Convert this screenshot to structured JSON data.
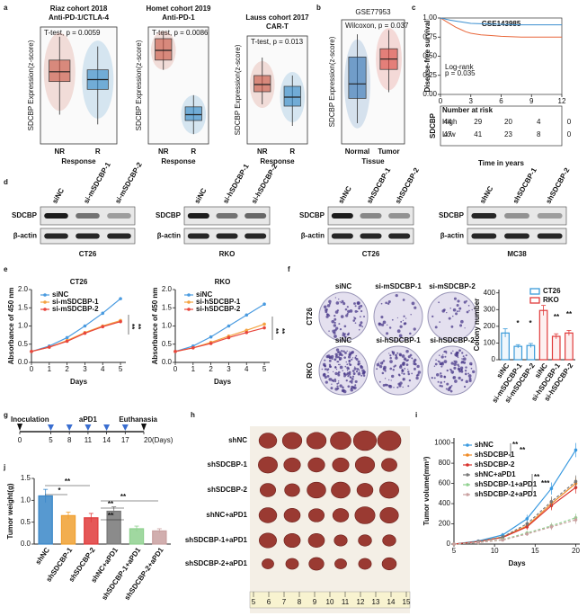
{
  "panel_labels": [
    "a",
    "b",
    "c",
    "d",
    "e",
    "f",
    "g",
    "h",
    "i",
    "j"
  ],
  "a": {
    "charts": [
      {
        "type": "box",
        "title": "Riaz cohort 2018",
        "subtitle": "Anti-PD-1/CTLA-4",
        "stat": "T-test, p = 0.0059",
        "ylabel": "SDCBP Expression(z-score)",
        "xlabel": "Response",
        "categories": [
          "NR",
          "R"
        ],
        "colors": [
          "#c8513f",
          "#2f86c4"
        ],
        "ylim": [
          -3,
          3
        ],
        "boxes": [
          {
            "min": -1.5,
            "q1": 0.2,
            "median": 0.7,
            "q3": 1.3,
            "max": 2.5
          },
          {
            "min": -2,
            "q1": -0.2,
            "median": 0.3,
            "q3": 0.8,
            "max": 2
          }
        ]
      },
      {
        "type": "box",
        "title": "Homet cohort 2019",
        "subtitle": "Anti-PD-1",
        "stat": "T-test, p = 0.0086",
        "ylabel": "SDCBP Expression(z-score)",
        "xlabel": "Response",
        "categories": [
          "NR",
          "R"
        ],
        "colors": [
          "#c8513f",
          "#2f86c4"
        ],
        "ylim": [
          -3,
          3
        ],
        "boxes": [
          {
            "min": 0.8,
            "q1": 1.3,
            "median": 1.8,
            "q3": 2.4,
            "max": 2.8
          },
          {
            "min": -2.5,
            "q1": -1.8,
            "median": -1.5,
            "q3": -1.1,
            "max": -0.5
          }
        ]
      },
      {
        "type": "box",
        "title": "Lauss cohort 2017",
        "subtitle": "CAR-T",
        "stat": "T-test, p = 0.013",
        "ylabel": "SDCBP Expression(z-score)",
        "xlabel": "Response",
        "categories": [
          "NR",
          "R"
        ],
        "colors": [
          "#c8513f",
          "#2f86c4"
        ],
        "ylim": [
          -3,
          3
        ],
        "boxes": [
          {
            "min": -0.8,
            "q1": -0.1,
            "median": 0.3,
            "q3": 0.8,
            "max": 1.8
          },
          {
            "min": -2,
            "q1": -0.9,
            "median": -0.4,
            "q3": 0.2,
            "max": 0.8
          }
        ]
      }
    ]
  },
  "b": {
    "type": "box",
    "title": "GSE77953",
    "stat": "Wilcoxon, p = 0.037",
    "ylabel": "SDCBP Expression(z-score)",
    "xlabel": "Tissue",
    "categories": [
      "Normal",
      "Tumor"
    ],
    "colors": [
      "#2f6fb0",
      "#d8423a"
    ],
    "ylim": [
      -3,
      3
    ],
    "boxes": [
      {
        "min": -2,
        "q1": -0.8,
        "median": -0.1,
        "q3": 1.2,
        "max": 2.3
      },
      {
        "min": -0.5,
        "q1": 0.6,
        "median": 1.1,
        "q3": 1.6,
        "max": 2.5
      }
    ]
  },
  "c": {
    "type": "line",
    "title": "GSE143985",
    "ylabel": "Disease-free survival",
    "xlabel": "Time in years",
    "stat": "Log-rank",
    "pvalue": "p = 0.035",
    "xlim": [
      0,
      12
    ],
    "xticks": [
      0,
      3,
      6,
      9,
      12
    ],
    "ylim": [
      0,
      1
    ],
    "yticks": [
      {
        "value": 0,
        "label": "0.00"
      },
      0.25,
      {
        "value": 0.5,
        "label": "0.50"
      },
      0.75,
      {
        "value": 1,
        "label": "1.00"
      }
    ],
    "risk_title": "Number at risk",
    "group_label": "SDCBP",
    "series": [
      {
        "name": "High",
        "color": "#e9673a",
        "x": [
          0,
          0.5,
          1,
          1.5,
          2,
          2.5,
          3,
          4,
          5,
          6,
          8,
          12
        ],
        "values": [
          1,
          0.96,
          0.92,
          0.88,
          0.85,
          0.82,
          0.8,
          0.78,
          0.77,
          0.76,
          0.75,
          0.75
        ],
        "at_risk": [
          44,
          29,
          20,
          4,
          0
        ]
      },
      {
        "name": "Low",
        "color": "#3b8fd0",
        "x": [
          0,
          1,
          2,
          3,
          5,
          8,
          12
        ],
        "values": [
          1,
          0.97,
          0.95,
          0.93,
          0.92,
          0.91,
          0.91
        ],
        "at_risk": [
          47,
          41,
          23,
          8,
          0
        ]
      }
    ]
  },
  "d": {
    "blots": [
      {
        "lanes": [
          "siNC",
          "si-mSDCBP-1",
          "si-mSDCBP-2"
        ],
        "rows": [
          "SDCBP",
          "β-actin"
        ],
        "cell_line": "CT26"
      },
      {
        "lanes": [
          "siNC",
          "si-hSDCBP-1",
          "si-hSDCBP-2"
        ],
        "rows": [
          "SDCBP",
          "β-actin"
        ],
        "cell_line": "RKO"
      },
      {
        "lanes": [
          "shNC",
          "shSDCBP-1",
          "shSDCBP-2"
        ],
        "rows": [
          "SDCBP",
          "β-actin"
        ],
        "cell_line": "CT26"
      },
      {
        "lanes": [
          "shNC",
          "shSDCBP-1",
          "shSDCBP-2"
        ],
        "rows": [
          "SDCBP",
          "β-actin"
        ],
        "cell_line": "MC38"
      }
    ]
  },
  "e": {
    "charts": [
      {
        "type": "line",
        "title": "CT26",
        "ylabel": "Absorbance of 450 nm",
        "xlabel": "Days",
        "x": [
          0,
          1,
          2,
          3,
          4,
          5
        ],
        "xlim": [
          0,
          5.3
        ],
        "xticks": [
          0,
          1,
          2,
          3,
          4,
          5
        ],
        "ylim": [
          0,
          2
        ],
        "yticks": [
          {
            "value": 0,
            "label": "0.0"
          },
          0.5,
          {
            "value": 1,
            "label": "1.0"
          },
          1.5,
          {
            "value": 2,
            "label": "2.0"
          }
        ],
        "annotations": [
          "**",
          "**"
        ],
        "series": [
          {
            "name": "siNC",
            "color": "#4a9be0",
            "values": [
              0.3,
              0.45,
              0.68,
              1.0,
              1.35,
              1.75
            ]
          },
          {
            "name": "si-mSDCBP-1",
            "color": "#f4a340",
            "values": [
              0.3,
              0.42,
              0.6,
              0.82,
              1.0,
              1.15
            ]
          },
          {
            "name": "si-mSDCBP-2",
            "color": "#e8453c",
            "values": [
              0.3,
              0.42,
              0.58,
              0.8,
              0.98,
              1.12
            ]
          }
        ]
      },
      {
        "type": "line",
        "title": "RKO",
        "ylabel": "Absorbance of 450 nm",
        "xlabel": "Days",
        "x": [
          0,
          1,
          2,
          3,
          4,
          5
        ],
        "xlim": [
          0,
          5.3
        ],
        "xticks": [
          0,
          1,
          2,
          3,
          4,
          5
        ],
        "ylim": [
          0,
          2
        ],
        "yticks": [
          {
            "value": 0,
            "label": "0.0"
          },
          0.5,
          {
            "value": 1,
            "label": "1.0"
          },
          1.5,
          {
            "value": 2,
            "label": "2.0"
          }
        ],
        "annotations": [
          "**",
          "**"
        ],
        "series": [
          {
            "name": "siNC",
            "color": "#4a9be0",
            "values": [
              0.3,
              0.45,
              0.7,
              1.0,
              1.3,
              1.6
            ]
          },
          {
            "name": "si-hSDCBP-1",
            "color": "#f4a340",
            "values": [
              0.3,
              0.4,
              0.55,
              0.72,
              0.88,
              1.05
            ]
          },
          {
            "name": "si-hSDCBP-2",
            "color": "#e8453c",
            "values": [
              0.3,
              0.4,
              0.52,
              0.68,
              0.82,
              0.95
            ]
          }
        ]
      }
    ]
  },
  "f": {
    "photo_columns": [
      [
        "siNC",
        "si-mSDCBP-1",
        "si-mSDCBP-2"
      ],
      [
        "siNC",
        "si-hSDCBP-1",
        "si-hSDCBP-2"
      ]
    ],
    "photo_rows": [
      "CT26",
      "RKO"
    ],
    "chart": {
      "type": "bar",
      "ylabel": "Colony number",
      "categories": [
        "siNC",
        "si-mSDCBP-1",
        "si-mSDCBP-2",
        "siNC",
        "si-hSDCBP-1",
        "si-hSDCBP-2"
      ],
      "values": [
        160,
        80,
        85,
        295,
        140,
        160
      ],
      "errors": [
        25,
        10,
        12,
        30,
        15,
        15
      ],
      "colors": [
        "#3a9ad9",
        "#3a9ad9",
        "#3a9ad9",
        "#e03a3a",
        "#e03a3a",
        "#e03a3a"
      ],
      "ylim": [
        0,
        420
      ],
      "yticks": [
        0,
        100,
        200,
        300,
        400
      ],
      "annotations": [
        "*",
        "*",
        "**",
        "**"
      ],
      "legend": [
        {
          "name": "CT26",
          "color": "#3a9ad9"
        },
        {
          "name": "RKO",
          "color": "#e03a3a"
        }
      ]
    }
  },
  "g": {
    "start_label": "Inoculation",
    "treatment_label": "aPD1",
    "end_label": "Euthanasia",
    "xlim": [
      0,
      20
    ],
    "ticks": [
      0,
      5,
      8,
      11,
      14,
      17,
      {
        "value": 20,
        "label": "20(Days)"
      }
    ],
    "injections": [
      5,
      8,
      11,
      14,
      17
    ]
  },
  "h": {
    "rows": [
      "shNC",
      "shSDCBP-1",
      "shSDCBP-2",
      "shNC+aPD1",
      "shSDCBP-1+aPD1",
      "shSDCBP-2+aPD1"
    ],
    "ruler": [
      5,
      6,
      7,
      8,
      9,
      10,
      11,
      12,
      13,
      14,
      15
    ]
  },
  "i": {
    "type": "line",
    "ylabel": "Tumor volume(mm³)",
    "xlabel": "Days",
    "x": [
      5,
      8,
      11,
      14,
      17,
      20
    ],
    "xlim": [
      5,
      20.5
    ],
    "xticks": [
      5,
      10,
      15,
      20
    ],
    "ylim": [
      0,
      1050
    ],
    "yticks": [
      0,
      200,
      400,
      600,
      800,
      1000
    ],
    "annotations": [
      "**",
      "**",
      "**",
      "***"
    ],
    "series": [
      {
        "name": "shNC",
        "color": "#3a9ae0",
        "dash": false,
        "values": [
          0,
          30,
          90,
          250,
          550,
          930
        ],
        "errors": [
          0,
          8,
          20,
          40,
          60,
          70
        ]
      },
      {
        "name": "shSDCBP-1",
        "color": "#f08a24",
        "dash": false,
        "values": [
          0,
          25,
          70,
          180,
          400,
          600
        ],
        "errors": [
          0,
          6,
          15,
          30,
          50,
          60
        ]
      },
      {
        "name": "shSDCBP-2",
        "color": "#d9302a",
        "dash": false,
        "values": [
          0,
          25,
          65,
          170,
          380,
          560
        ],
        "errors": [
          0,
          6,
          15,
          30,
          45,
          60
        ]
      },
      {
        "name": "shNC+aPD1",
        "color": "#777777",
        "dash": true,
        "values": [
          0,
          25,
          70,
          200,
          420,
          620
        ],
        "errors": [
          0,
          6,
          15,
          30,
          50,
          60
        ]
      },
      {
        "name": "shSDCBP-1+aPD1",
        "color": "#8fd18f",
        "dash": true,
        "values": [
          0,
          15,
          45,
          110,
          180,
          260
        ],
        "errors": [
          0,
          4,
          10,
          20,
          30,
          40
        ]
      },
      {
        "name": "shSDCBP-2+aPD1",
        "color": "#c9a0a0",
        "dash": true,
        "values": [
          0,
          15,
          40,
          100,
          170,
          240
        ],
        "errors": [
          0,
          4,
          10,
          20,
          30,
          40
        ]
      }
    ]
  },
  "j": {
    "type": "bar",
    "ylabel": "Tumor weight(g)",
    "categories": [
      "shNC",
      "shSDCBP-1",
      "shSDCBP-2",
      "shNC+aPD1",
      "shSDCBP-1+aPD1",
      "shSDCBP-2+aPD1"
    ],
    "values": [
      1.1,
      0.65,
      0.6,
      0.75,
      0.35,
      0.3
    ],
    "errors": [
      0.15,
      0.08,
      0.1,
      0.1,
      0.06,
      0.05
    ],
    "colors": [
      "#3a87c8",
      "#f0a030",
      "#e03a3a",
      "#777777",
      "#8fd18f",
      "#c9a0a0"
    ],
    "ylim": [
      0,
      1.5
    ],
    "yticks": [
      {
        "value": 0,
        "label": "0.0"
      },
      0.5,
      {
        "value": 1,
        "label": "1.0"
      },
      1.5
    ],
    "annotations": [
      "**",
      "*",
      "**",
      "**",
      "**"
    ]
  }
}
